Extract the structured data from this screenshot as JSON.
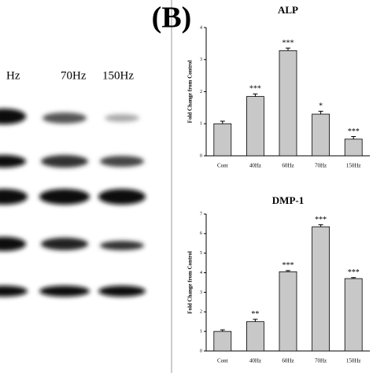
{
  "figure": {
    "panel_label": "(B)",
    "blot_lanes": [
      "Hz",
      "70Hz",
      "150Hz"
    ]
  },
  "chart_data": [
    {
      "type": "bar",
      "title": "ALP",
      "y_label": "Fold Change from Control",
      "categories": [
        "Cont",
        "40Hz",
        "60Hz",
        "70Hz",
        "150Hz"
      ],
      "values": [
        1.0,
        1.85,
        3.28,
        1.3,
        0.52
      ],
      "errors": [
        0.08,
        0.08,
        0.08,
        0.09,
        0.08
      ],
      "significance": [
        null,
        "***",
        "***",
        "*",
        "***"
      ],
      "color": "#c8c8c8",
      "ylim": [
        0,
        4
      ],
      "yticks": [
        0,
        1,
        2,
        3,
        4
      ]
    },
    {
      "type": "bar",
      "title": "DMP-1",
      "y_label": "Fold Change from Control",
      "categories": [
        "Cont",
        "40Hz",
        "60Hz",
        "70Hz",
        "150Hz"
      ],
      "values": [
        1.0,
        1.5,
        4.05,
        6.35,
        3.7
      ],
      "errors": [
        0.08,
        0.12,
        0.06,
        0.1,
        0.05
      ],
      "significance": [
        null,
        "**",
        "***",
        "***",
        "***"
      ],
      "color": "#c8c8c8",
      "ylim": [
        0,
        7
      ],
      "yticks": [
        0,
        1,
        2,
        3,
        4,
        5,
        6,
        7
      ]
    }
  ]
}
